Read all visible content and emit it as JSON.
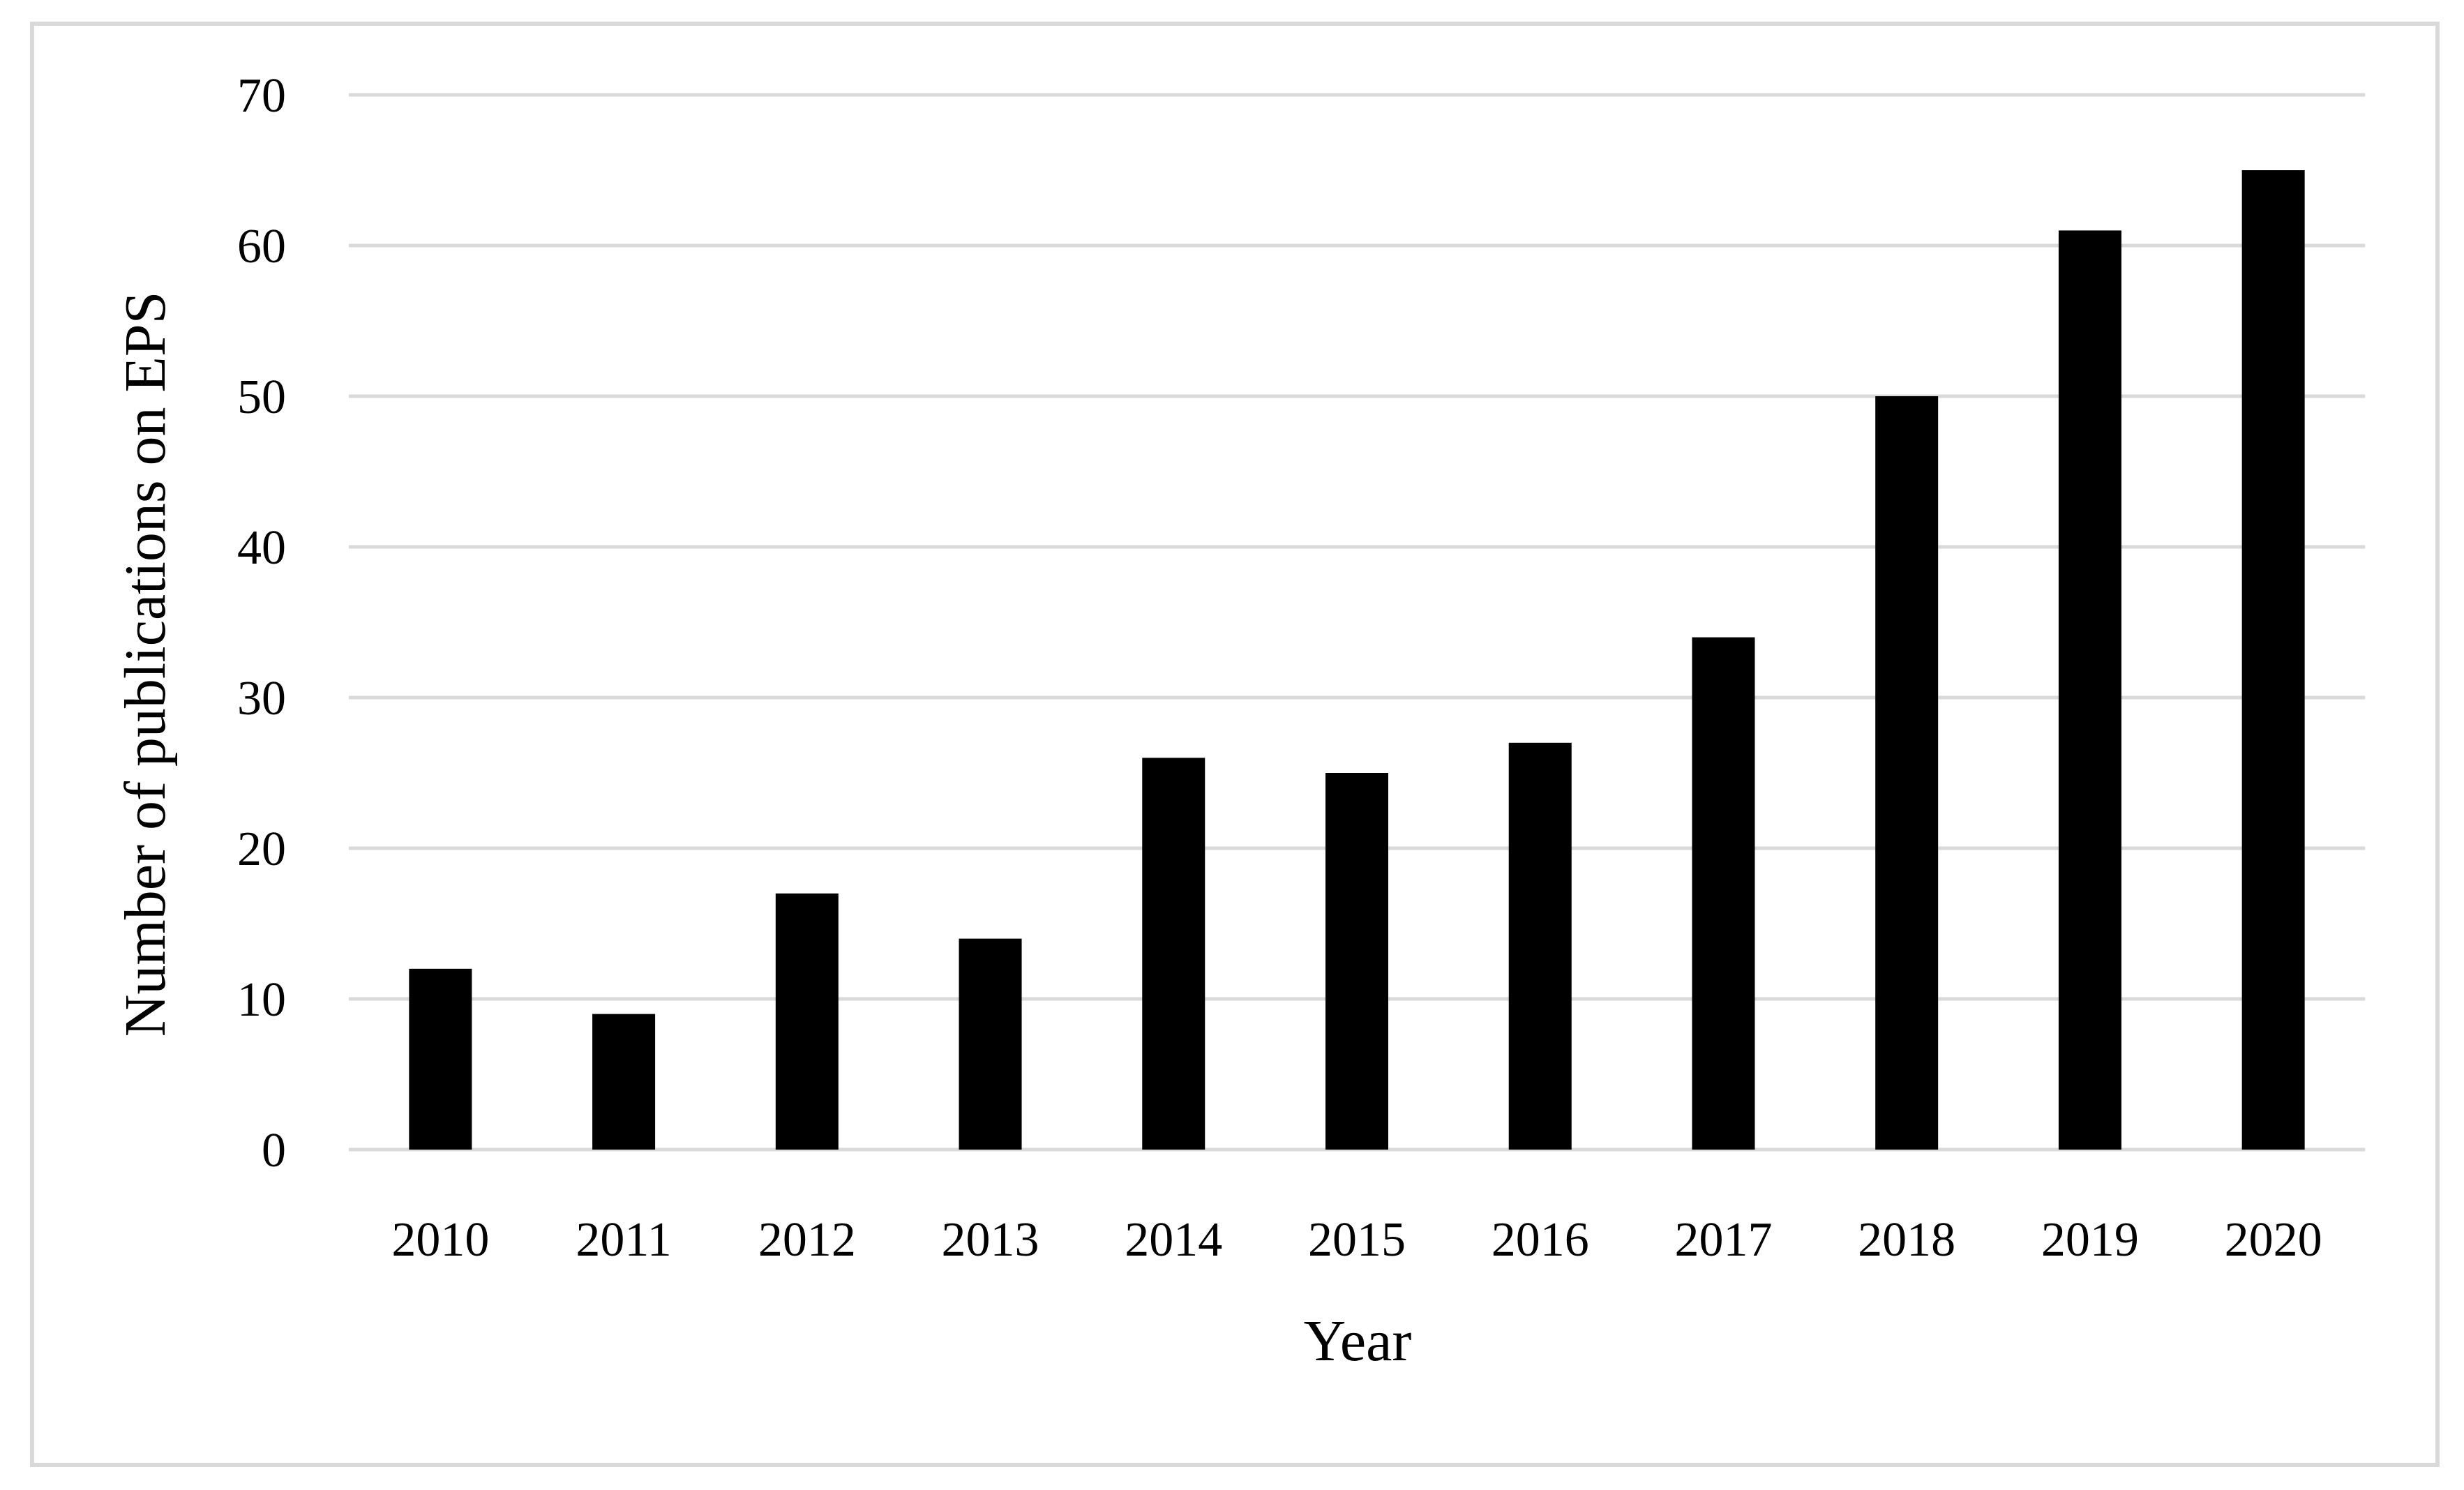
{
  "chart_data": {
    "type": "bar",
    "title": "",
    "xlabel": "Year",
    "ylabel": "Number of publications on EPS",
    "categories": [
      "2010",
      "2011",
      "2012",
      "2013",
      "2014",
      "2015",
      "2016",
      "2017",
      "2018",
      "2019",
      "2020"
    ],
    "values": [
      12,
      9,
      17,
      14,
      26,
      25,
      27,
      34,
      50,
      61,
      65
    ],
    "ylim": [
      0,
      70
    ],
    "yticks": [
      "0",
      "10",
      "20",
      "30",
      "40",
      "50",
      "60",
      "70"
    ],
    "grid": true,
    "legend": "none",
    "bar_color": "#000000",
    "grid_color": "#d9d9d9",
    "frame_color": "#d9d9d9"
  }
}
